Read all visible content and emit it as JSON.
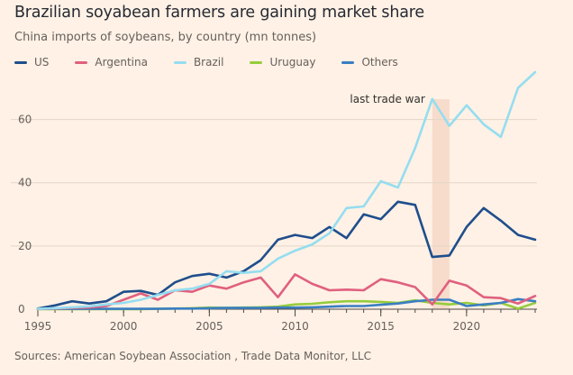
{
  "title": "Brazilian soyabean farmers are gaining market share",
  "subtitle": "China imports of soybeans, by country (mn tonnes)",
  "source": "Sources: American Soybean Association , Trade Data Monitor, LLC",
  "chart_data": {
    "type": "line",
    "x": [
      1995,
      1996,
      1997,
      1998,
      1999,
      2000,
      2001,
      2002,
      2003,
      2004,
      2005,
      2006,
      2007,
      2008,
      2009,
      2010,
      2011,
      2012,
      2013,
      2014,
      2015,
      2016,
      2017,
      2018,
      2019,
      2020,
      2021,
      2022,
      2023,
      2024
    ],
    "xticks": [
      1995,
      2000,
      2005,
      2010,
      2015,
      2020
    ],
    "yticks": [
      0,
      20,
      40,
      60
    ],
    "xlim": [
      1995,
      2024
    ],
    "ylim": [
      0,
      75
    ],
    "grid": true,
    "legend_position": "top-left",
    "series": [
      {
        "name": "US",
        "color": "#1f4e8c",
        "values": [
          0.2,
          1.2,
          2.5,
          1.8,
          2.5,
          5.5,
          5.8,
          4.5,
          8.5,
          10.5,
          11.2,
          10.0,
          12.0,
          15.5,
          22.0,
          23.5,
          22.5,
          26.0,
          22.5,
          30.0,
          28.5,
          34.0,
          33.0,
          16.5,
          17.0,
          26.0,
          32.0,
          28.0,
          23.5,
          22.0
        ]
      },
      {
        "name": "Argentina",
        "color": "#e0607e",
        "values": [
          0.1,
          0.2,
          0.4,
          0.5,
          1.0,
          3.0,
          5.0,
          3.0,
          6.0,
          5.5,
          7.5,
          6.5,
          8.5,
          10.0,
          3.8,
          11.0,
          8.0,
          6.0,
          6.2,
          6.0,
          9.5,
          8.5,
          7.0,
          1.5,
          9.0,
          7.5,
          3.8,
          3.5,
          1.8,
          4.2
        ]
      },
      {
        "name": "Brazil",
        "color": "#95ddf0",
        "values": [
          0.1,
          0.3,
          0.6,
          0.9,
          1.5,
          2.0,
          3.0,
          4.5,
          6.0,
          6.5,
          8.0,
          12.0,
          11.5,
          12.0,
          16.0,
          18.5,
          20.5,
          24.0,
          32.0,
          32.5,
          40.5,
          38.5,
          51.0,
          66.5,
          58.0,
          64.5,
          58.5,
          54.5,
          70.0,
          75.0
        ]
      },
      {
        "name": "Uruguay",
        "color": "#96cc3c",
        "values": [
          0,
          0,
          0,
          0,
          0,
          0,
          0,
          0.1,
          0.2,
          0.3,
          0.5,
          0.4,
          0.5,
          0.6,
          0.8,
          1.5,
          1.7,
          2.2,
          2.5,
          2.5,
          2.3,
          2.0,
          2.8,
          2.0,
          1.5,
          2.0,
          1.2,
          2.0,
          0.2,
          2.0
        ]
      },
      {
        "name": "Others",
        "color": "#3a7ec2",
        "values": [
          0.1,
          0.1,
          0.1,
          0.1,
          0.1,
          0.1,
          0.1,
          0.1,
          0.2,
          0.2,
          0.3,
          0.4,
          0.4,
          0.4,
          0.5,
          0.5,
          0.6,
          0.8,
          1.0,
          1.0,
          1.4,
          1.8,
          2.5,
          3.0,
          3.0,
          1.0,
          1.5,
          2.0,
          3.2,
          2.5
        ]
      }
    ],
    "annotations": [
      {
        "label": "last trade war",
        "x_start": 2018,
        "x_end": 2019
      }
    ]
  }
}
